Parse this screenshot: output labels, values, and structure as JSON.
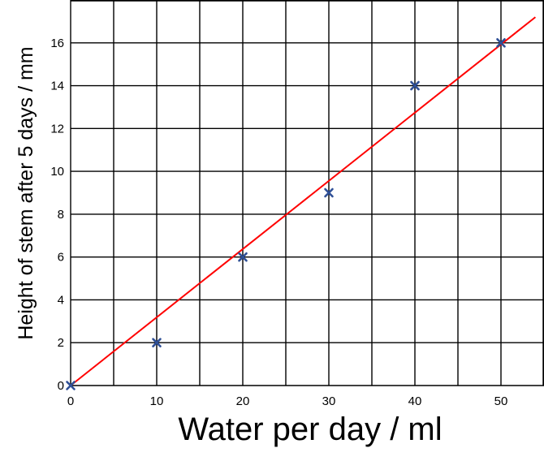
{
  "chart_data": {
    "type": "scatter",
    "title": "",
    "xlabel": "Water per day / ml",
    "ylabel": "Height of stem after 5 days / mm",
    "xlim": [
      0,
      55
    ],
    "ylim": [
      0,
      18
    ],
    "x_ticks": [
      0,
      10,
      20,
      30,
      40,
      50
    ],
    "y_ticks": [
      0,
      2,
      4,
      6,
      8,
      10,
      12,
      14,
      16
    ],
    "grid": true,
    "grid_x_step": 5,
    "grid_y_step": 2,
    "series": [
      {
        "type": "scatter",
        "marker": "x",
        "color": "#2e4f96",
        "points": [
          {
            "x": 0,
            "y": 0
          },
          {
            "x": 10,
            "y": 2
          },
          {
            "x": 20,
            "y": 6
          },
          {
            "x": 30,
            "y": 9
          },
          {
            "x": 40,
            "y": 14
          },
          {
            "x": 50,
            "y": 16
          }
        ]
      },
      {
        "type": "line",
        "color": "#ff0000",
        "points": [
          {
            "x": 0,
            "y": 0
          },
          {
            "x": 54,
            "y": 17.2
          }
        ]
      }
    ]
  }
}
